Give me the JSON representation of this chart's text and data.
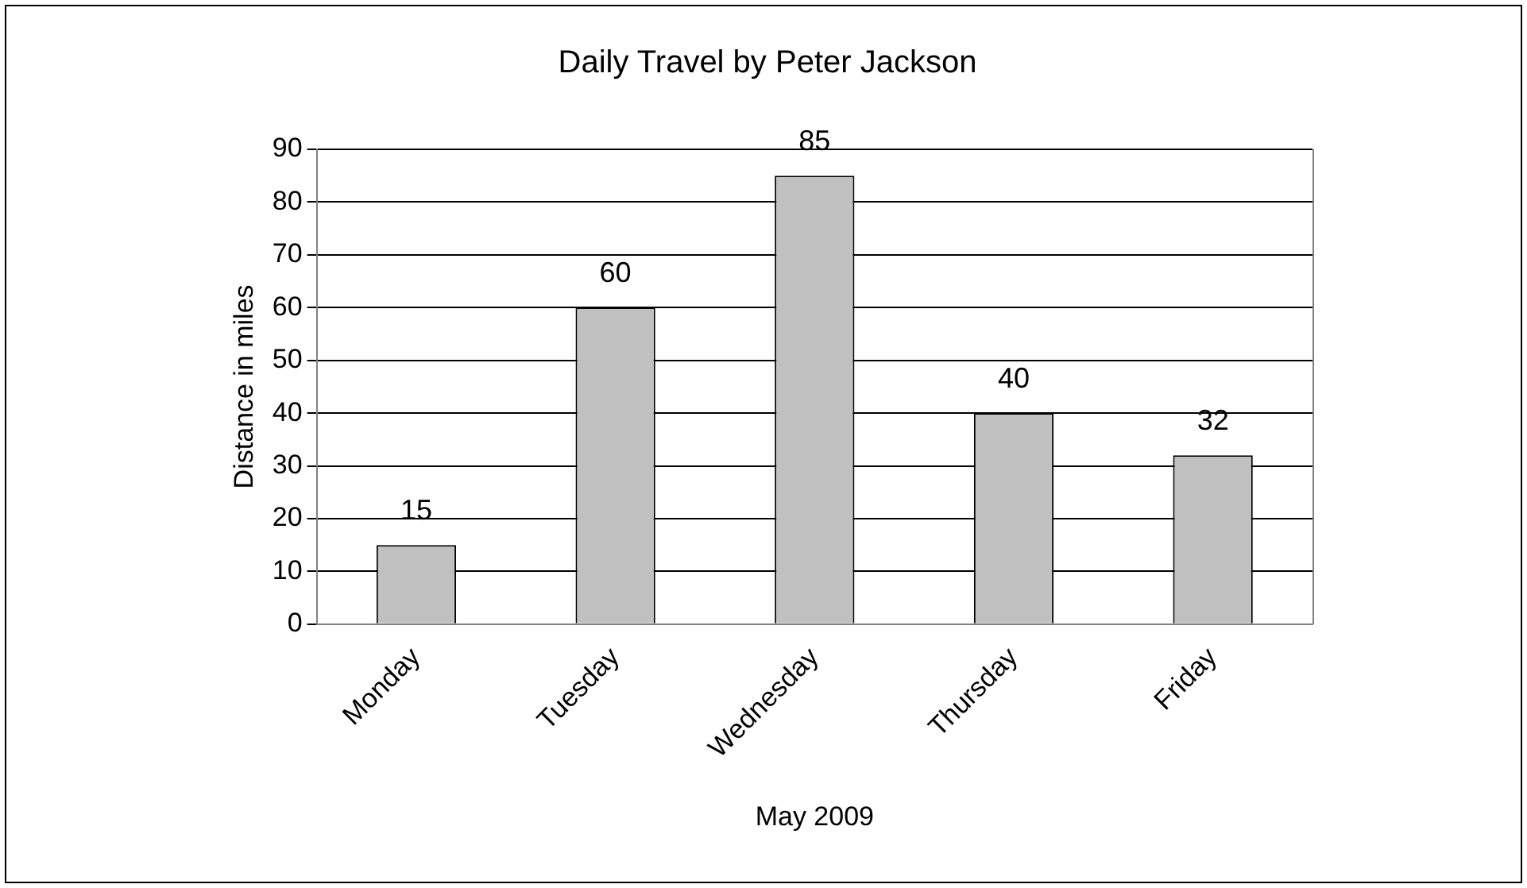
{
  "chart_data": {
    "type": "bar",
    "title": "Daily Travel by Peter Jackson",
    "xlabel": "May 2009",
    "ylabel": "Distance in miles",
    "categories": [
      "Monday",
      "Tuesday",
      "Wednesday",
      "Thursday",
      "Friday"
    ],
    "values": [
      15,
      60,
      85,
      40,
      32
    ],
    "color": "#c0c0c0",
    "ylim": [
      0,
      90
    ],
    "yticks": [
      0,
      10,
      20,
      30,
      40,
      50,
      60,
      70,
      80,
      90
    ],
    "grid": "y",
    "legend": false,
    "data_labels": true
  }
}
